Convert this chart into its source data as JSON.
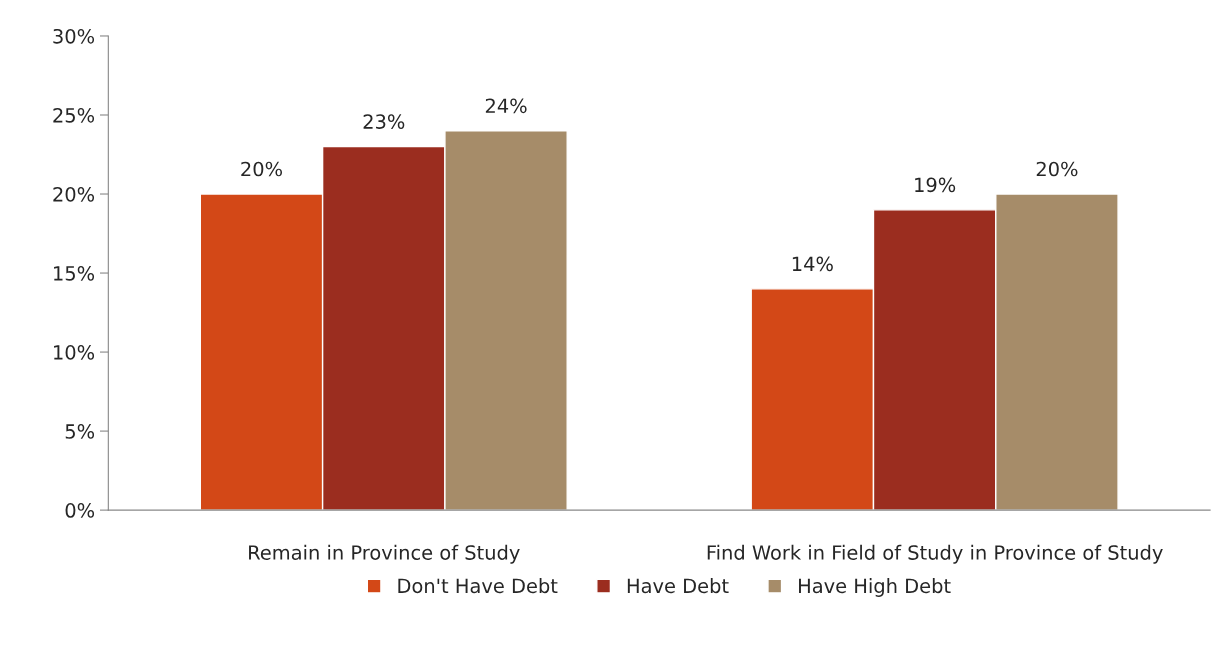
{
  "chart_data": {
    "type": "bar",
    "categories": [
      "Remain in Province of Study",
      "Find Work in Field of Study in Province of Study"
    ],
    "series": [
      {
        "name": "Don't Have Debt",
        "color": "#d34817",
        "values": [
          20,
          14
        ],
        "value_labels": [
          "20%",
          "14%"
        ]
      },
      {
        "name": "Have Debt",
        "color": "#9b2d1f",
        "values": [
          23,
          19
        ],
        "value_labels": [
          "23%",
          "19%"
        ]
      },
      {
        "name": "Have High Debt",
        "color": "#a68c69",
        "values": [
          24,
          20
        ],
        "value_labels": [
          "24%",
          "20%"
        ]
      }
    ],
    "ylim": [
      0,
      30
    ],
    "yticks": [
      {
        "value": 0,
        "label": "0%"
      },
      {
        "value": 5,
        "label": "5%"
      },
      {
        "value": 10,
        "label": "10%"
      },
      {
        "value": 15,
        "label": "15%"
      },
      {
        "value": 20,
        "label": "20%"
      },
      {
        "value": 25,
        "label": "25%"
      },
      {
        "value": 30,
        "label": "30%"
      }
    ],
    "grid": false,
    "legend": "bottom"
  }
}
